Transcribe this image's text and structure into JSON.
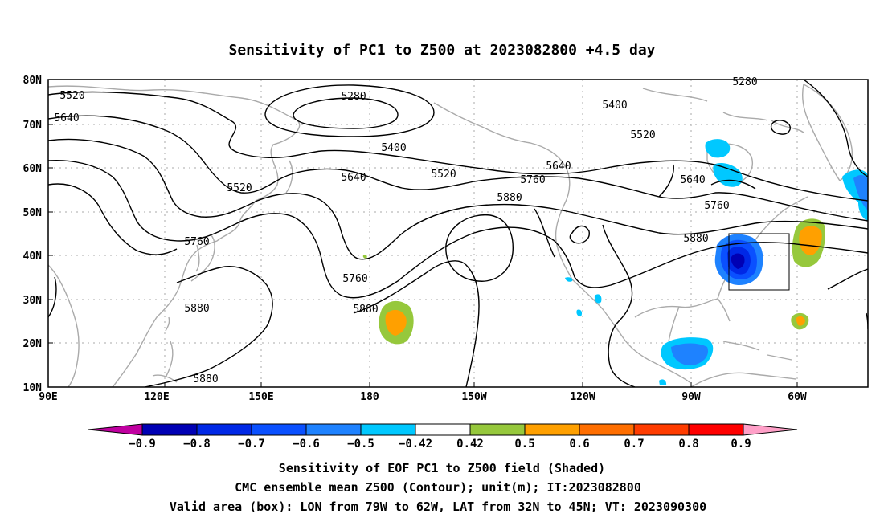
{
  "title": "Sensitivity of PC1 to Z500 at 2023082800 +4.5 day",
  "map": {
    "lon_labels": [
      "90E",
      "120E",
      "150E",
      "180",
      "150W",
      "120W",
      "90W",
      "60W"
    ],
    "lat_labels": [
      "80N",
      "70N",
      "60N",
      "50N",
      "40N",
      "30N",
      "20N",
      "10N"
    ],
    "extent": {
      "lon_min": "90E",
      "lon_max": "40W",
      "lat_min": "10N",
      "lat_max": "80N"
    },
    "grid": "dotted"
  },
  "contours": {
    "labels": [
      {
        "id": "c1",
        "value": "5520"
      },
      {
        "id": "c2",
        "value": "5640"
      },
      {
        "id": "c3",
        "value": "5280"
      },
      {
        "id": "c4",
        "value": "5400"
      },
      {
        "id": "c5",
        "value": "5520"
      },
      {
        "id": "c6",
        "value": "5640"
      },
      {
        "id": "c7",
        "value": "5520"
      },
      {
        "id": "c8",
        "value": "5640"
      },
      {
        "id": "c9",
        "value": "5760"
      },
      {
        "id": "c10",
        "value": "5880"
      },
      {
        "id": "c11",
        "value": "5760"
      },
      {
        "id": "c12",
        "value": "5880"
      },
      {
        "id": "c13",
        "value": "5880"
      },
      {
        "id": "c14",
        "value": "5880"
      },
      {
        "id": "c15",
        "value": "5280"
      },
      {
        "id": "c16",
        "value": "5400"
      },
      {
        "id": "c17",
        "value": "5520"
      },
      {
        "id": "c18",
        "value": "5640"
      },
      {
        "id": "c19",
        "value": "5760"
      },
      {
        "id": "c20",
        "value": "5880"
      },
      {
        "id": "c21",
        "value": "5760"
      }
    ]
  },
  "colorbar": {
    "tick_labels": [
      "−0.9",
      "−0.8",
      "−0.7",
      "−0.6",
      "−0.5",
      "−0.42",
      "0.42",
      "0.5",
      "0.6",
      "0.7",
      "0.8",
      "0.9"
    ],
    "colors": [
      "#c000a0",
      "#0000b4",
      "#0028e6",
      "#0a50ff",
      "#1e82ff",
      "#00c8ff",
      "#ffffff",
      "#96c83c",
      "#ffa000",
      "#ff6e00",
      "#ff3c00",
      "#ff0000",
      "#ffa0c8"
    ]
  },
  "valid_box": {
    "lon_from": "79W",
    "lon_to": "62W",
    "lat_from": "32N",
    "lat_to": "45N"
  },
  "captions": [
    "Sensitivity of EOF PC1 to Z500 field (Shaded)",
    "CMC ensemble mean Z500 (Contour); unit(m); IT:2023082800",
    "Valid area (box): LON from 79W to 62W, LAT from 32N to 45N; VT: 2023090300"
  ]
}
